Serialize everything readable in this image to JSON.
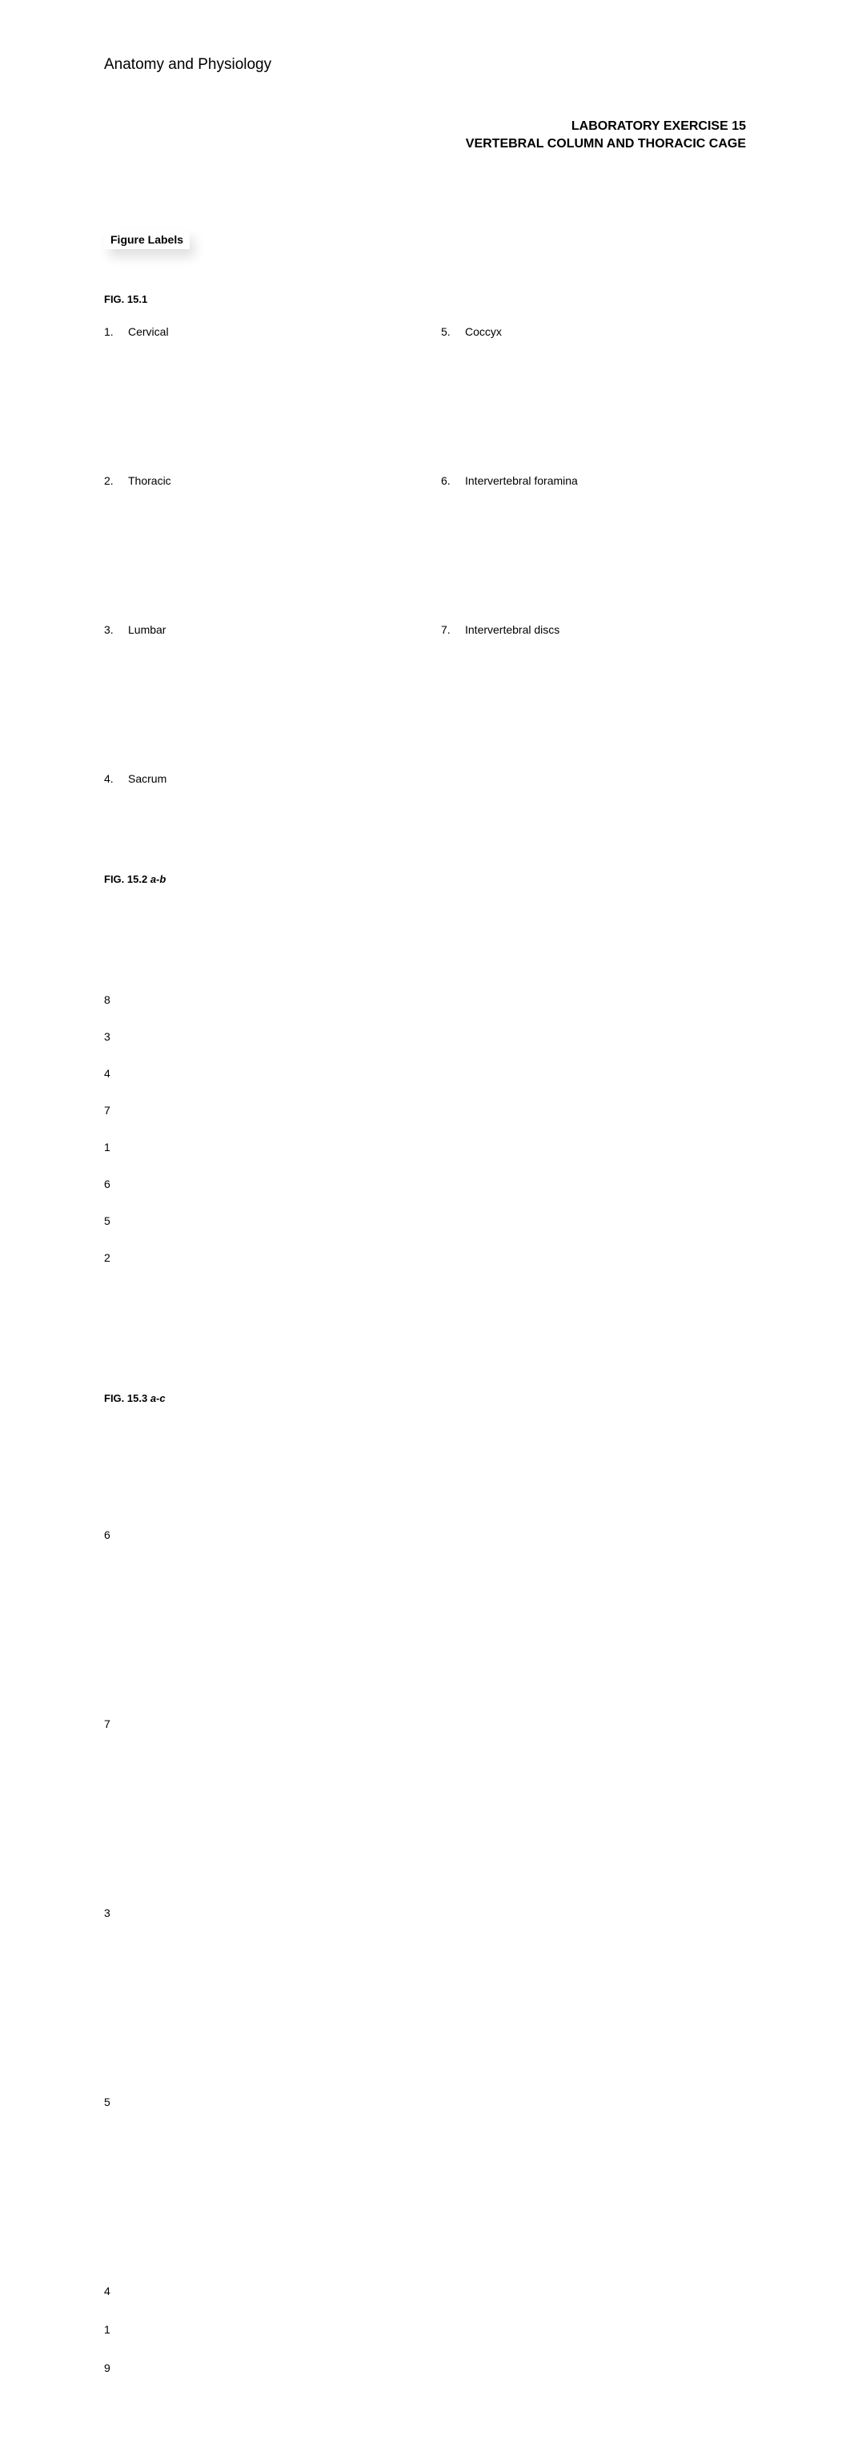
{
  "course": "Anatomy and Physiology",
  "header": {
    "line1": "LABORATORY EXERCISE 15",
    "line2": "VERTEBRAL COLUMN AND THORACIC CAGE"
  },
  "sectionLabel": "Figure Labels",
  "fig1": {
    "heading": "FIG. 15.1",
    "left": [
      {
        "num": "1.",
        "text": "Cervical"
      },
      {
        "num": "2.",
        "text": "Thoracic"
      },
      {
        "num": "3.",
        "text": "Lumbar"
      },
      {
        "num": "4.",
        "text": "Sacrum"
      }
    ],
    "right": [
      {
        "num": "5.",
        "text": "Coccyx"
      },
      {
        "num": "6.",
        "text": "Intervertebral foramina"
      },
      {
        "num": "7.",
        "text": "Intervertebral discs"
      }
    ]
  },
  "fig2": {
    "headingPrefix": "FIG. 15.2",
    "headingItalic": " a-b",
    "items": [
      "8",
      "3",
      "4",
      "7",
      "1",
      "6",
      "5",
      "2"
    ]
  },
  "fig3": {
    "headingPrefix": "FIG. 15.3",
    "headingItalic": " a-c",
    "spacedItems": [
      "6",
      "7",
      "3",
      "5"
    ],
    "tightItems": [
      "4",
      "1",
      "9"
    ]
  }
}
